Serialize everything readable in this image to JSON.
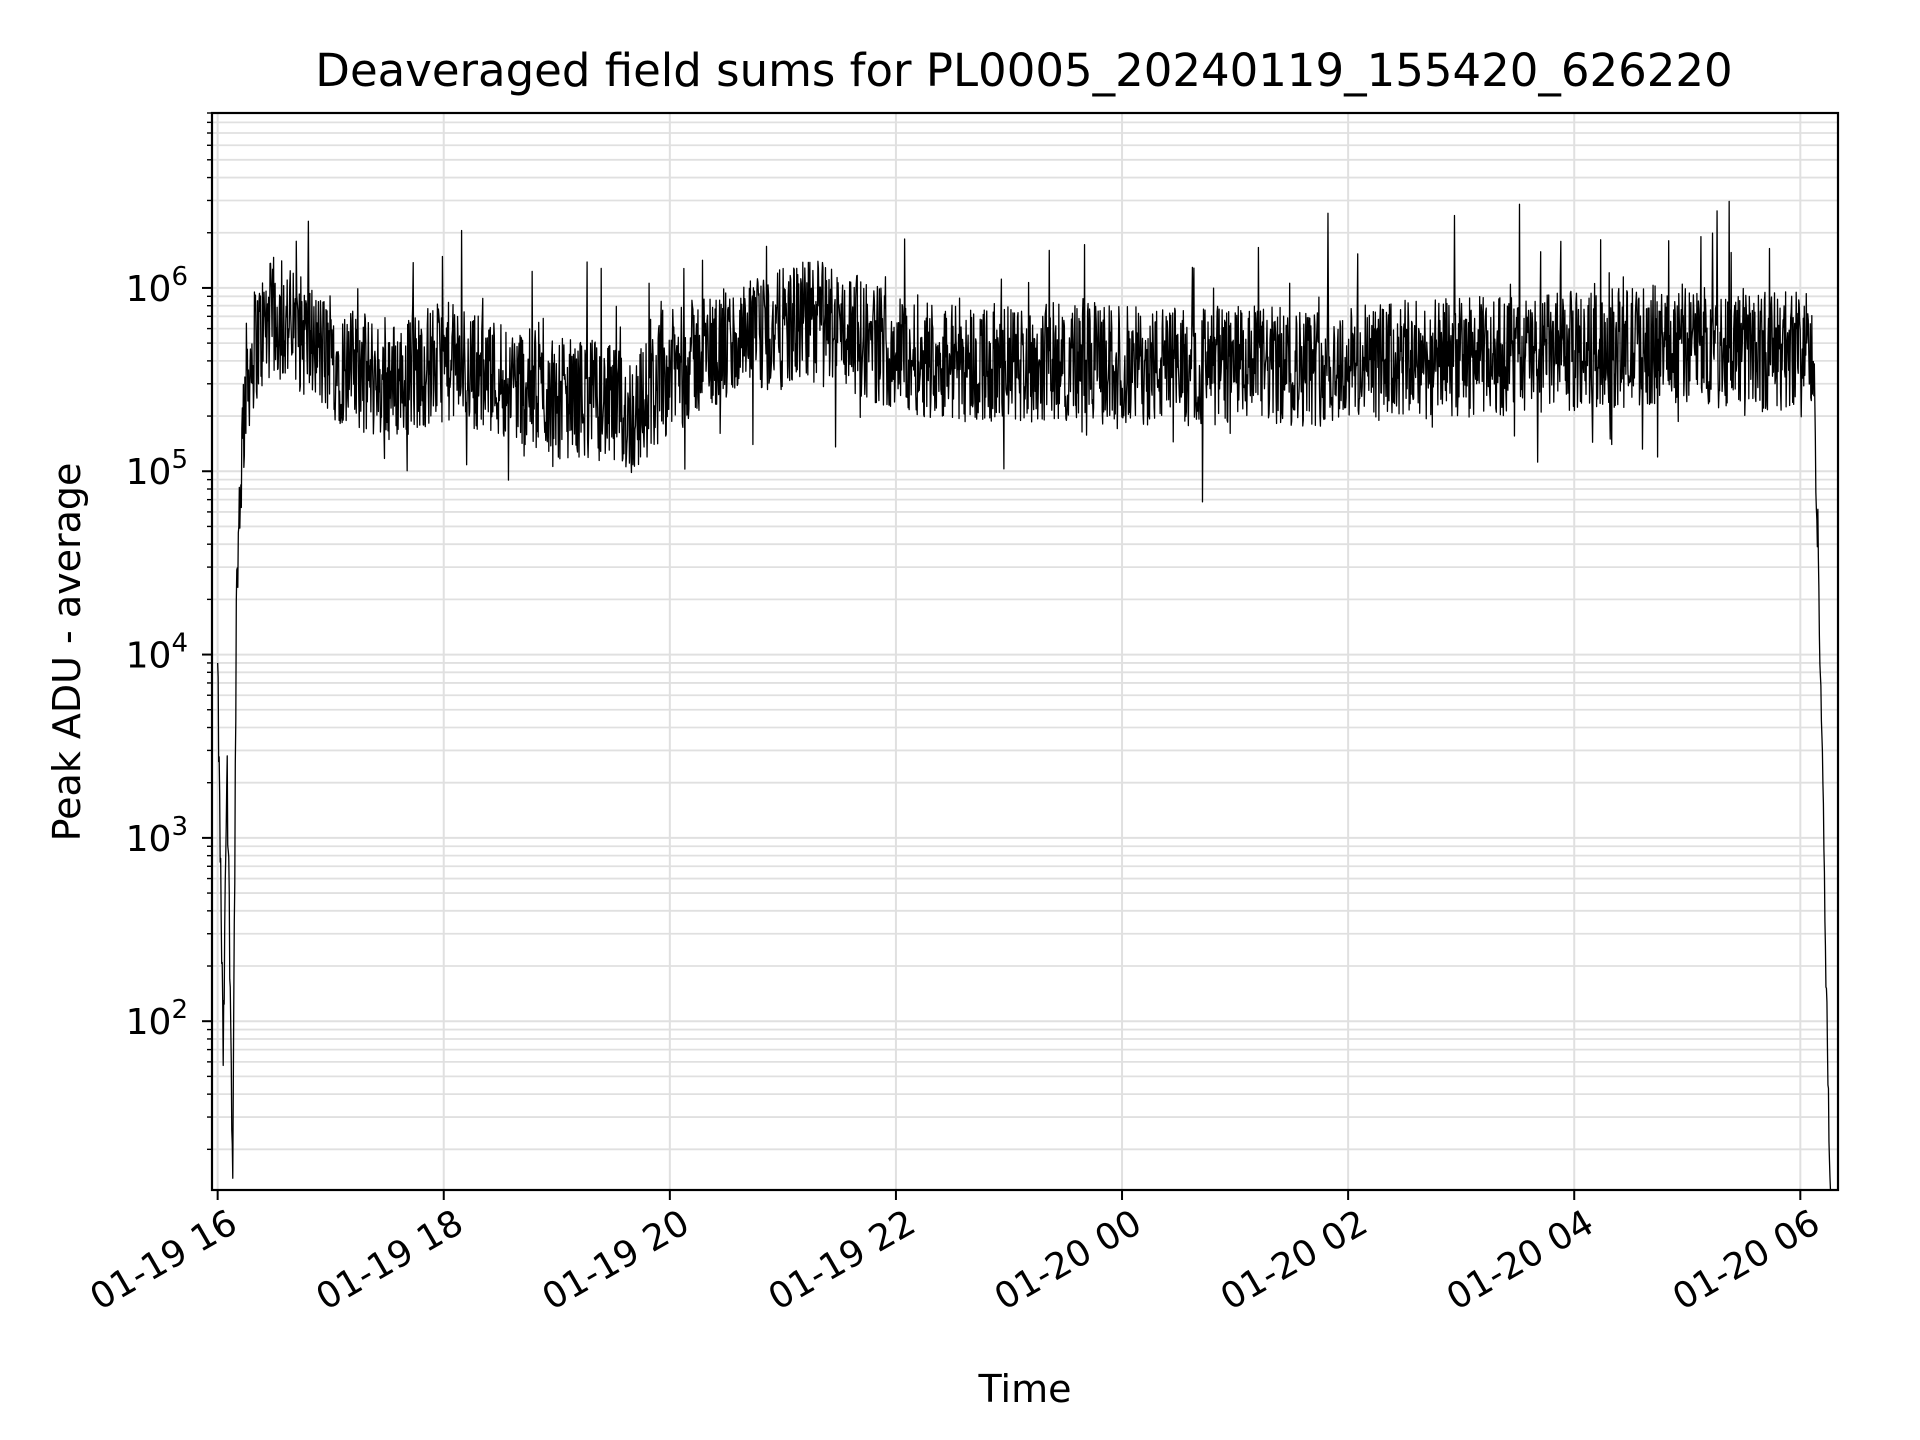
{
  "chart_data": {
    "type": "line",
    "title": "Deaveraged field sums for PL0005_20240119_155420_626220",
    "xlabel": "Time",
    "ylabel": "Peak ADU - average",
    "yscale": "log",
    "ylim": [
      12,
      9000000
    ],
    "xlim": [
      "2024-01-19 15:57",
      "2024-01-20 06:20"
    ],
    "grid": true,
    "grid_color": "#e0e0e0",
    "line_color": "#000000",
    "x_ticks": [
      {
        "x": "2024-01-19 16:00",
        "label": "01-19 16"
      },
      {
        "x": "2024-01-19 18:00",
        "label": "01-19 18"
      },
      {
        "x": "2024-01-19 20:00",
        "label": "01-19 20"
      },
      {
        "x": "2024-01-19 22:00",
        "label": "01-19 22"
      },
      {
        "x": "2024-01-20 00:00",
        "label": "01-20 00"
      },
      {
        "x": "2024-01-20 02:00",
        "label": "01-20 02"
      },
      {
        "x": "2024-01-20 04:00",
        "label": "01-20 04"
      },
      {
        "x": "2024-01-20 06:00",
        "label": "01-20 06"
      }
    ],
    "y_ticks": [
      {
        "value": 100,
        "base": "10",
        "exp": "2"
      },
      {
        "value": 1000,
        "base": "10",
        "exp": "3"
      },
      {
        "value": 10000,
        "base": "10",
        "exp": "4"
      },
      {
        "value": 100000,
        "base": "10",
        "exp": "5"
      },
      {
        "value": 1000000,
        "base": "10",
        "exp": "6"
      }
    ],
    "series": [
      {
        "x": [
          "2024-01-19 16:00",
          "2024-01-19 16:03",
          "2024-01-19 16:05",
          "2024-01-19 16:08",
          "2024-01-19 16:10",
          "2024-01-19 16:12",
          "2024-01-19 16:15",
          "2024-01-19 16:20",
          "2024-01-19 16:25",
          "2024-01-19 16:30",
          "2024-01-19 16:40",
          "2024-01-19 16:50",
          "2024-01-19 17:00",
          "2024-01-19 17:15",
          "2024-01-19 17:30",
          "2024-01-19 17:45",
          "2024-01-19 18:00",
          "2024-01-19 18:20",
          "2024-01-19 18:40",
          "2024-01-19 19:00",
          "2024-01-19 19:20",
          "2024-01-19 19:40",
          "2024-01-19 20:00",
          "2024-01-19 20:20",
          "2024-01-19 20:40",
          "2024-01-19 21:00",
          "2024-01-19 21:20",
          "2024-01-19 21:40",
          "2024-01-19 22:00",
          "2024-01-19 22:30",
          "2024-01-19 23:00",
          "2024-01-19 23:30",
          "2024-01-20 00:00",
          "2024-01-20 00:30",
          "2024-01-20 01:00",
          "2024-01-20 01:30",
          "2024-01-20 02:00",
          "2024-01-20 02:30",
          "2024-01-20 03:00",
          "2024-01-20 03:30",
          "2024-01-20 04:00",
          "2024-01-20 04:30",
          "2024-01-20 05:00",
          "2024-01-20 05:30",
          "2024-01-20 05:50",
          "2024-01-20 06:00",
          "2024-01-20 06:05",
          "2024-01-20 06:08",
          "2024-01-20 06:10",
          "2024-01-20 06:12",
          "2024-01-20 06:14",
          "2024-01-20 06:16"
        ],
        "y": [
          8000,
          60,
          3000,
          15,
          20000,
          90000,
          300000,
          500000,
          600000,
          700000,
          600000,
          500000,
          400000,
          350000,
          300000,
          350000,
          400000,
          350000,
          300000,
          250000,
          250000,
          200000,
          350000,
          450000,
          500000,
          600000,
          700000,
          550000,
          450000,
          400000,
          380000,
          400000,
          380000,
          370000,
          380000,
          370000,
          380000,
          400000,
          420000,
          430000,
          450000,
          480000,
          500000,
          480000,
          450000,
          500000,
          500000,
          200000,
          20000,
          2000,
          100,
          12
        ]
      }
    ]
  }
}
